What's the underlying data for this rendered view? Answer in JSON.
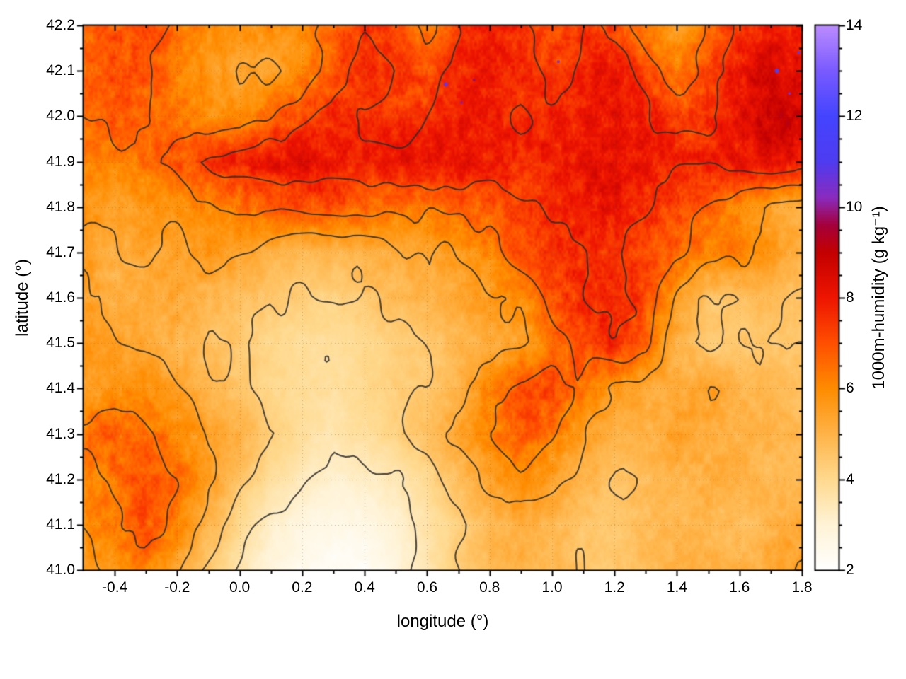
{
  "chart_data": {
    "type": "heatmap",
    "title": "",
    "xlabel": "longitude (°)",
    "ylabel": "latitude (°)",
    "colorbar_label": "1000m-humidity (g kg⁻¹)",
    "xlim": [
      -0.5,
      1.8
    ],
    "ylim": [
      41.0,
      42.2
    ],
    "zlim": [
      2,
      14
    ],
    "grid": "on",
    "x_ticks": [
      -0.4,
      -0.2,
      0.0,
      0.2,
      0.4,
      0.6,
      0.8,
      1.0,
      1.2,
      1.4,
      1.6,
      1.8
    ],
    "x_tick_labels": [
      "-0.4",
      "-0.2",
      "0.0",
      "0.2",
      "0.4",
      "0.6",
      "0.8",
      "1.0",
      "1.2",
      "1.4",
      "1.6",
      "1.8"
    ],
    "y_ticks": [
      41.0,
      41.1,
      41.2,
      41.3,
      41.4,
      41.5,
      41.6,
      41.7,
      41.8,
      41.9,
      42.0,
      42.1,
      42.2
    ],
    "y_tick_labels": [
      "41.0",
      "41.1",
      "41.2",
      "41.3",
      "41.4",
      "41.5",
      "41.6",
      "41.7",
      "41.8",
      "41.9",
      "42.0",
      "42.1",
      "42.2"
    ],
    "colorbar_ticks": [
      2,
      4,
      6,
      8,
      10,
      12,
      14
    ],
    "colorbar_tick_labels": [
      "2",
      "4",
      "6",
      "8",
      "10",
      "12",
      "14"
    ],
    "contour_levels": [
      3.5,
      4.5,
      5.5,
      6.5,
      7.5
    ],
    "contour_color": "#2d2d2d",
    "colormap": [
      {
        "v": 2.0,
        "c": "#ffffff"
      },
      {
        "v": 3.0,
        "c": "#fff3d6"
      },
      {
        "v": 4.0,
        "c": "#ffd98e"
      },
      {
        "v": 5.0,
        "c": "#ffb347"
      },
      {
        "v": 6.0,
        "c": "#ff8c00"
      },
      {
        "v": 7.0,
        "c": "#ff4f00"
      },
      {
        "v": 8.0,
        "c": "#ee1500"
      },
      {
        "v": 9.0,
        "c": "#c30000"
      },
      {
        "v": 9.6,
        "c": "#a4003a"
      },
      {
        "v": 10.2,
        "c": "#8a2bbe"
      },
      {
        "v": 11.0,
        "c": "#4e3cf0"
      },
      {
        "v": 12.0,
        "c": "#4444ff"
      },
      {
        "v": 13.0,
        "c": "#7a5aff"
      },
      {
        "v": 14.0,
        "c": "#bb8cff"
      }
    ],
    "lon0": -0.5,
    "lat0": 41.0,
    "dlon": 0.1,
    "dlat": 0.1,
    "values_lat_desc": [
      [
        6.5,
        6.8,
        7.0,
        6.5,
        6.0,
        5.8,
        6.0,
        5.8,
        6.8,
        7.5,
        7.0,
        6.2,
        7.5,
        7.8,
        7.5,
        7.0,
        7.5,
        7.2,
        6.2,
        5.5,
        6.5,
        7.5,
        8.0,
        7.5
      ],
      [
        6.8,
        7.0,
        6.8,
        6.2,
        5.8,
        5.5,
        5.5,
        6.0,
        7.0,
        7.8,
        7.5,
        6.8,
        7.5,
        8.0,
        7.5,
        7.2,
        7.8,
        8.2,
        7.2,
        6.2,
        6.8,
        7.8,
        8.4,
        8.2
      ],
      [
        6.5,
        6.8,
        6.5,
        6.2,
        6.0,
        5.8,
        6.5,
        7.2,
        7.8,
        7.5,
        7.0,
        7.5,
        8.0,
        7.8,
        7.5,
        7.8,
        8.0,
        8.3,
        7.8,
        7.2,
        7.5,
        8.3,
        8.8,
        8.5
      ],
      [
        6.0,
        6.2,
        6.5,
        7.0,
        7.5,
        8.0,
        8.2,
        8.3,
        8.2,
        8.0,
        8.2,
        8.3,
        8.2,
        8.0,
        7.8,
        7.8,
        8.0,
        8.2,
        8.0,
        7.8,
        7.8,
        8.0,
        8.3,
        8.0
      ],
      [
        5.8,
        5.5,
        5.8,
        6.0,
        6.2,
        6.5,
        6.8,
        7.0,
        7.0,
        6.8,
        6.5,
        6.5,
        6.8,
        7.0,
        7.2,
        7.5,
        7.8,
        8.0,
        7.5,
        7.0,
        6.5,
        6.0,
        5.5,
        5.0
      ],
      [
        5.5,
        5.2,
        5.5,
        5.5,
        5.8,
        5.5,
        5.0,
        4.8,
        4.8,
        5.0,
        5.2,
        5.5,
        5.8,
        6.2,
        6.8,
        7.2,
        7.5,
        7.5,
        7.0,
        6.5,
        6.0,
        6.0,
        5.5,
        5.0
      ],
      [
        5.5,
        5.0,
        5.2,
        5.5,
        5.0,
        4.8,
        4.5,
        4.2,
        4.2,
        4.5,
        4.8,
        5.0,
        5.2,
        5.5,
        6.0,
        6.8,
        7.5,
        7.8,
        7.0,
        5.5,
        4.5,
        4.5,
        4.8,
        4.5
      ],
      [
        5.8,
        5.5,
        5.2,
        5.0,
        4.8,
        4.5,
        4.0,
        3.8,
        3.8,
        4.0,
        4.2,
        4.5,
        4.8,
        5.0,
        5.5,
        6.2,
        7.0,
        7.5,
        6.8,
        5.0,
        4.2,
        4.5,
        4.5,
        4.5
      ],
      [
        5.5,
        5.8,
        6.0,
        5.5,
        5.0,
        4.5,
        4.0,
        3.8,
        3.8,
        4.0,
        4.2,
        4.5,
        5.0,
        6.0,
        6.8,
        7.0,
        6.2,
        5.5,
        5.2,
        5.0,
        5.5,
        5.0,
        4.8,
        4.5
      ],
      [
        6.5,
        7.0,
        6.5,
        6.0,
        5.5,
        5.0,
        4.2,
        3.8,
        3.5,
        3.8,
        4.2,
        4.8,
        5.5,
        6.2,
        6.8,
        6.5,
        5.5,
        4.8,
        5.0,
        5.5,
        5.2,
        5.0,
        5.0,
        4.8
      ],
      [
        6.0,
        6.5,
        7.0,
        6.5,
        5.5,
        4.5,
        3.8,
        3.4,
        3.0,
        3.2,
        3.5,
        4.0,
        4.8,
        5.5,
        6.0,
        5.5,
        5.0,
        4.5,
        4.8,
        5.0,
        5.2,
        5.0,
        4.8,
        5.0
      ],
      [
        5.8,
        6.2,
        6.8,
        6.0,
        5.0,
        4.0,
        3.2,
        2.8,
        2.6,
        2.6,
        3.0,
        3.6,
        4.2,
        4.8,
        5.0,
        4.8,
        4.5,
        4.5,
        4.8,
        5.0,
        5.0,
        4.8,
        5.0,
        5.2
      ],
      [
        5.5,
        5.8,
        6.2,
        5.5,
        4.5,
        3.5,
        2.8,
        2.4,
        2.2,
        2.2,
        2.8,
        3.6,
        4.4,
        4.8,
        5.0,
        4.8,
        4.5,
        4.5,
        4.8,
        5.0,
        5.0,
        5.0,
        5.2,
        5.5
      ]
    ],
    "hotspots": [
      {
        "lon": 0.66,
        "lat": 42.07,
        "value": 10.5,
        "r": 3
      },
      {
        "lon": 0.71,
        "lat": 42.03,
        "value": 10.0,
        "r": 2
      },
      {
        "lon": 0.75,
        "lat": 42.08,
        "value": 9.8,
        "r": 2
      },
      {
        "lon": 1.02,
        "lat": 42.12,
        "value": 10.2,
        "r": 2
      },
      {
        "lon": 1.72,
        "lat": 42.1,
        "value": 11.0,
        "r": 3
      },
      {
        "lon": 1.76,
        "lat": 42.05,
        "value": 10.3,
        "r": 2
      },
      {
        "lon": 1.79,
        "lat": 42.14,
        "value": 10.8,
        "r": 2
      }
    ]
  }
}
